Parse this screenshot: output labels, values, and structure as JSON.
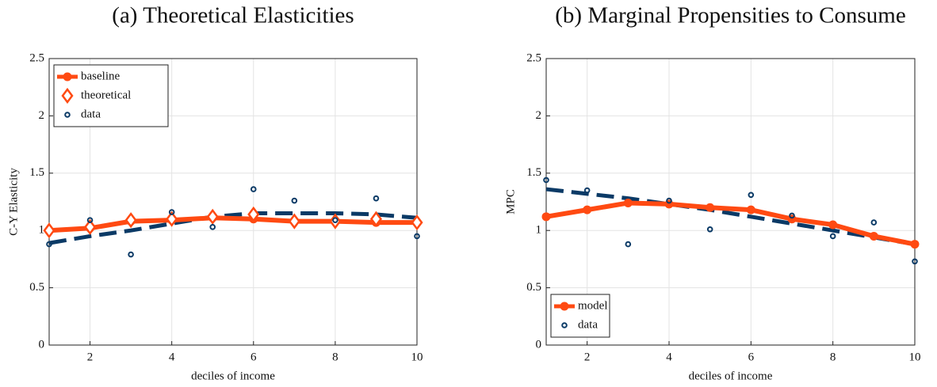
{
  "chart_data": [
    {
      "type": "line",
      "title": "(a) Theoretical Elasticities",
      "xlabel": "deciles of income",
      "ylabel": "C-Y Elasticity",
      "x": [
        1,
        2,
        3,
        4,
        5,
        6,
        7,
        8,
        9,
        10
      ],
      "xlim": [
        1,
        10
      ],
      "xticks": [
        2,
        4,
        6,
        8,
        10
      ],
      "ylim": [
        0,
        2.5
      ],
      "yticks": [
        0,
        0.5,
        1,
        1.5,
        2,
        2.5
      ],
      "grid": true,
      "legend": "upper left",
      "series": [
        {
          "name": "baseline",
          "color": "#ff4a12",
          "line": "solid",
          "marker": "circle-filled",
          "values": [
            1.0,
            1.02,
            1.08,
            1.09,
            1.11,
            1.1,
            1.08,
            1.08,
            1.07,
            1.07
          ]
        },
        {
          "name": "theoretical",
          "color": "#ff4a12",
          "line": "none",
          "marker": "diamond-open",
          "values": [
            1.0,
            1.03,
            1.09,
            1.1,
            1.12,
            1.14,
            1.08,
            1.08,
            1.1,
            1.07
          ]
        },
        {
          "name": "data",
          "color": "#0b3a66",
          "line": "none",
          "marker": "circle-open",
          "values": [
            0.88,
            1.09,
            0.79,
            1.16,
            1.03,
            1.36,
            1.26,
            1.09,
            1.28,
            0.95
          ]
        },
        {
          "color": "#0b3a66",
          "line": "dashed",
          "marker": "none",
          "values": [
            0.89,
            0.95,
            1.0,
            1.06,
            1.12,
            1.15,
            1.15,
            1.15,
            1.14,
            1.11
          ]
        }
      ]
    },
    {
      "type": "line",
      "title": "(b) Marginal Propensities to Consume",
      "xlabel": "deciles of income",
      "ylabel": "MPC",
      "x": [
        1,
        2,
        3,
        4,
        5,
        6,
        7,
        8,
        9,
        10
      ],
      "xlim": [
        1,
        10
      ],
      "xticks": [
        2,
        4,
        6,
        8,
        10
      ],
      "ylim": [
        0,
        2.5
      ],
      "yticks": [
        0,
        0.5,
        1,
        1.5,
        2,
        2.5
      ],
      "grid": true,
      "legend": "lower left",
      "series": [
        {
          "name": "model",
          "color": "#ff4a12",
          "line": "solid",
          "marker": "circle-filled",
          "values": [
            1.12,
            1.18,
            1.24,
            1.23,
            1.2,
            1.18,
            1.1,
            1.05,
            0.95,
            0.88
          ]
        },
        {
          "name": "data",
          "color": "#0b3a66",
          "line": "none",
          "marker": "circle-open",
          "values": [
            1.44,
            1.35,
            0.88,
            1.26,
            1.01,
            1.31,
            1.13,
            0.95,
            1.07,
            0.73
          ]
        },
        {
          "color": "#0b3a66",
          "line": "dashed",
          "marker": "none",
          "values": [
            1.36,
            1.32,
            1.28,
            1.23,
            1.18,
            1.12,
            1.06,
            1.0,
            0.94,
            0.88
          ]
        }
      ]
    }
  ]
}
